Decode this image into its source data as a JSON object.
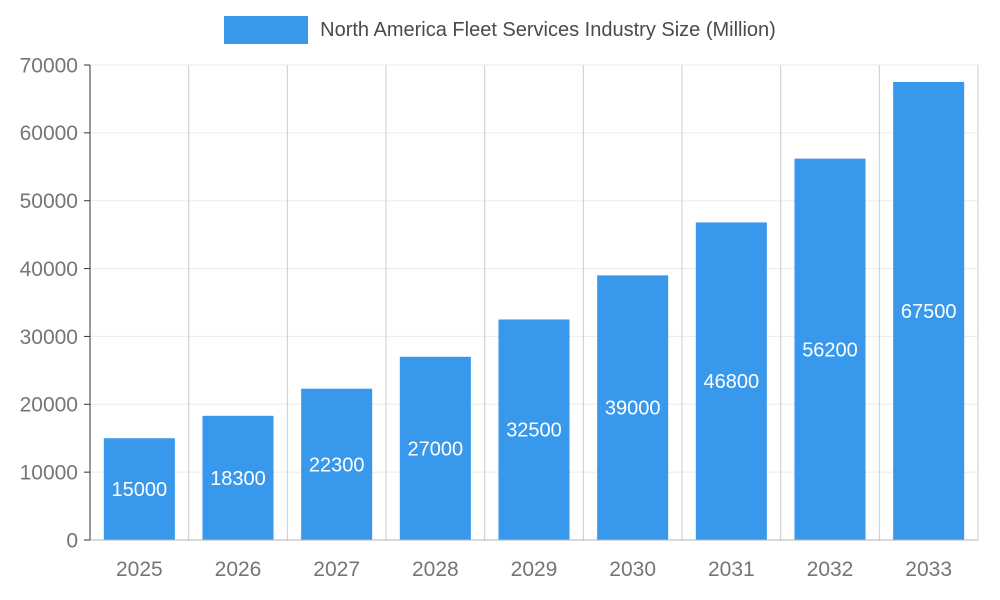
{
  "colors": {
    "bar": "#3899EC",
    "value_label": "#ffffff",
    "axis_label": "#757575",
    "title": "#4a4a4a",
    "grid_vertical": "#cccccc",
    "grid_horizontal": "#ebebeb",
    "axis_line": "#333333",
    "baseline": "#b3b3b3"
  },
  "chart_data": {
    "type": "bar",
    "title": "North America Fleet Services Industry Size (Million)",
    "categories": [
      "2025",
      "2026",
      "2027",
      "2028",
      "2029",
      "2030",
      "2031",
      "2032",
      "2033"
    ],
    "values": [
      15000,
      18300,
      22300,
      27000,
      32500,
      39000,
      46800,
      56200,
      67500
    ],
    "xlabel": "",
    "ylabel": "",
    "ylim": [
      0,
      70000
    ],
    "y_ticks": [
      0,
      10000,
      20000,
      30000,
      40000,
      50000,
      60000,
      70000
    ],
    "grid": true,
    "legend_position": "top",
    "value_labels": "inside-center"
  }
}
